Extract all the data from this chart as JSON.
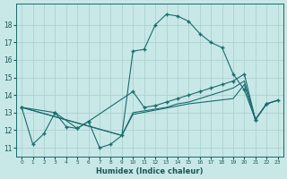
{
  "xlabel": "Humidex (Indice chaleur)",
  "bg_color": "#c8e8e8",
  "grid_color": "#a8cccc",
  "line_color": "#1a6b6b",
  "xlim": [
    -0.5,
    23.5
  ],
  "ylim": [
    10.5,
    19.2
  ],
  "yticks": [
    11,
    12,
    13,
    14,
    15,
    16,
    17,
    18
  ],
  "xticks": [
    0,
    1,
    2,
    3,
    4,
    5,
    6,
    7,
    8,
    9,
    10,
    11,
    12,
    13,
    14,
    15,
    16,
    17,
    18,
    19,
    20,
    21,
    22,
    23
  ],
  "series": [
    {
      "x": [
        0,
        1,
        2,
        3,
        4,
        5,
        6,
        7,
        8,
        9,
        10,
        11,
        12,
        13,
        14,
        15,
        16,
        17,
        18,
        19,
        20,
        21,
        22
      ],
      "y": [
        13.3,
        11.2,
        11.8,
        13.0,
        12.2,
        12.1,
        12.5,
        11.0,
        11.2,
        11.7,
        16.5,
        16.6,
        18.0,
        18.6,
        18.5,
        18.2,
        17.5,
        17.0,
        16.7,
        15.2,
        14.3,
        12.6,
        13.5
      ],
      "marker": true
    },
    {
      "x": [
        0,
        3,
        5,
        6,
        10,
        11,
        12,
        13,
        14,
        15,
        16,
        17,
        18,
        19,
        20,
        21,
        22,
        23
      ],
      "y": [
        13.3,
        13.0,
        12.1,
        12.5,
        14.2,
        13.3,
        13.4,
        13.6,
        13.8,
        14.0,
        14.2,
        14.4,
        14.6,
        14.8,
        15.2,
        12.6,
        13.5,
        13.7
      ],
      "marker": true
    },
    {
      "x": [
        0,
        9,
        10,
        11,
        12,
        13,
        14,
        15,
        16,
        17,
        18,
        19,
        20,
        21,
        22,
        23
      ],
      "y": [
        13.3,
        11.7,
        13.0,
        13.1,
        13.2,
        13.3,
        13.5,
        13.6,
        13.8,
        14.0,
        14.2,
        14.4,
        14.8,
        12.6,
        13.5,
        13.7
      ],
      "marker": false
    },
    {
      "x": [
        0,
        9,
        10,
        15,
        19,
        20,
        21,
        22,
        23
      ],
      "y": [
        13.3,
        11.7,
        12.9,
        13.5,
        13.8,
        14.6,
        12.6,
        13.5,
        13.7
      ],
      "marker": false
    }
  ]
}
